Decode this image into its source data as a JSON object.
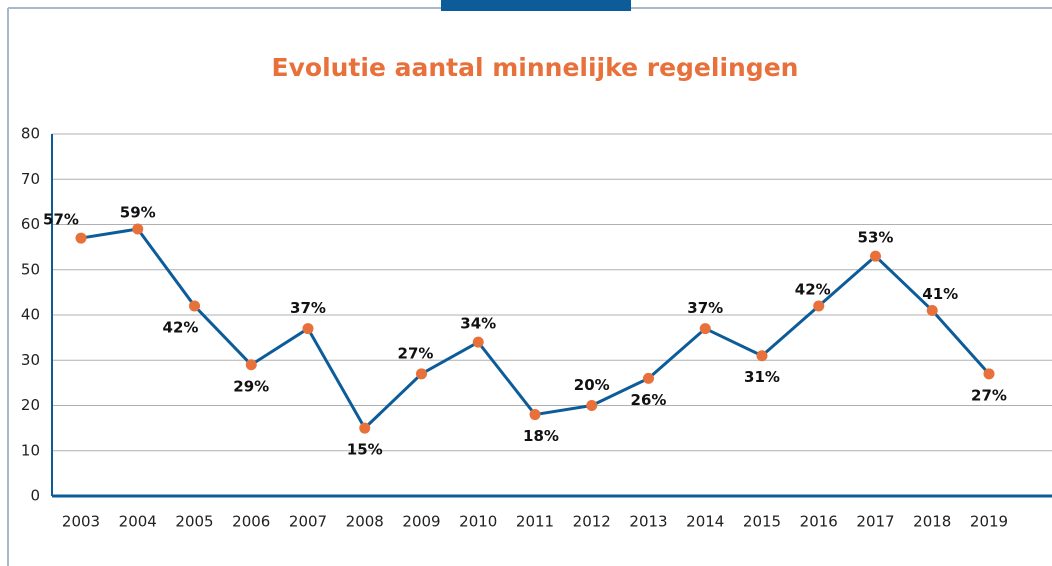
{
  "chart_data": {
    "type": "line",
    "title": "Evolutie aantal minnelijke regelingen",
    "categories": [
      "2003",
      "2004",
      "2005",
      "2006",
      "2007",
      "2008",
      "2009",
      "2010",
      "2011",
      "2012",
      "2013",
      "2014",
      "2015",
      "2016",
      "2017",
      "2018",
      "2019"
    ],
    "series": [
      {
        "color": "#0d5c9a",
        "marker_color": "#e8703a",
        "values": [
          57,
          59,
          42,
          29,
          37,
          15,
          27,
          34,
          18,
          20,
          26,
          37,
          31,
          42,
          53,
          41,
          27
        ],
        "value_labels": [
          "57%",
          "59%",
          "42%",
          "29%",
          "37%",
          "15%",
          "27%",
          "34%",
          "18%",
          "20%",
          "26%",
          "37%",
          "31%",
          "42%",
          "53%",
          "41%",
          "27%"
        ]
      }
    ],
    "ylim": [
      0,
      80
    ],
    "yticks": [
      0,
      10,
      20,
      30,
      40,
      50,
      60,
      70,
      80
    ],
    "grid": true
  }
}
